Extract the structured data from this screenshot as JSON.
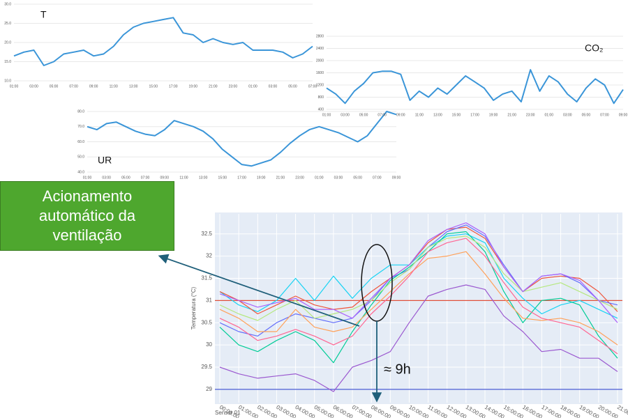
{
  "chart_data": [
    {
      "type": "line",
      "title": "T",
      "categories": [
        "01:00",
        null,
        "03:00",
        null,
        "05:00",
        null,
        "07:00",
        null,
        "09:00",
        null,
        "11:00",
        null,
        "13:00",
        null,
        "15:00",
        null,
        "17:00",
        null,
        "19:00",
        null,
        "21:00",
        null,
        "23:00",
        null,
        "01:00",
        null,
        "03:00",
        null,
        "05:00",
        null,
        "07:00"
      ],
      "series": [
        {
          "color": "#3a95d8",
          "values": [
            16.5,
            17.5,
            18,
            14,
            15,
            17,
            17.5,
            18,
            16.5,
            17,
            19,
            22,
            24,
            25,
            25.5,
            26,
            26.5,
            22.5,
            22,
            20,
            21,
            20,
            19.5,
            20,
            18,
            18,
            18,
            17.5,
            16,
            17,
            19
          ]
        }
      ],
      "ylim": [
        10,
        30
      ],
      "yticks": [
        {
          "value": 10,
          "label": "10.0"
        },
        {
          "value": 15,
          "label": "15.0"
        },
        {
          "value": 20,
          "label": "20.0"
        },
        {
          "value": 25,
          "label": "25.0"
        },
        {
          "value": 30,
          "label": "30.0"
        }
      ],
      "grid": true
    },
    {
      "type": "line",
      "title": "CO₂",
      "categories": [
        "01:00",
        null,
        "03:00",
        null,
        "05:00",
        null,
        "07:00",
        null,
        "09:00",
        null,
        "11:00",
        null,
        "13:00",
        null,
        "15:00",
        null,
        "17:00",
        null,
        "19:00",
        null,
        "21:00",
        null,
        "23:00",
        null,
        "01:00",
        null,
        "03:00",
        null,
        "05:00",
        null,
        "07:00",
        null,
        "09:00"
      ],
      "series": [
        {
          "color": "#3a95d8",
          "values": [
            1100,
            900,
            600,
            1000,
            1250,
            1600,
            1650,
            1650,
            1550,
            700,
            1000,
            800,
            1100,
            900,
            1200,
            1500,
            1300,
            1100,
            700,
            900,
            1000,
            650,
            1700,
            1000,
            1500,
            1300,
            900,
            650,
            1100,
            1400,
            1200,
            600,
            1050
          ]
        }
      ],
      "ylim": [
        400,
        2800
      ],
      "yticks": [
        400,
        800,
        1200,
        1600,
        2000,
        2400,
        2800
      ],
      "grid": true
    },
    {
      "type": "line",
      "title": "UR",
      "categories": [
        "01:00",
        null,
        "03:00",
        null,
        "05:00",
        null,
        "07:00",
        null,
        "09:00",
        null,
        "11:00",
        null,
        "13:00",
        null,
        "15:00",
        null,
        "17:00",
        null,
        "19:00",
        null,
        "21:00",
        null,
        "23:00",
        null,
        "01:00",
        null,
        "03:00",
        null,
        "05:00",
        null,
        "07:00",
        null,
        "09:00"
      ],
      "series": [
        {
          "color": "#3a95d8",
          "values": [
            70,
            68,
            72,
            73,
            70,
            67,
            65,
            64,
            68,
            74,
            72,
            70,
            67,
            62,
            55,
            50,
            45,
            44,
            46,
            48,
            53,
            59,
            64,
            68,
            70,
            68,
            66,
            63,
            60,
            64,
            72,
            80,
            78
          ]
        }
      ],
      "ylim": [
        40,
        80
      ],
      "yticks": [
        {
          "value": 40,
          "label": "40.0"
        },
        {
          "value": 50,
          "label": "50.0"
        },
        {
          "value": 60,
          "label": "60.0"
        },
        {
          "value": 70,
          "label": "70.0"
        },
        {
          "value": 80,
          "label": "80.0"
        }
      ],
      "grid": true
    },
    {
      "type": "line",
      "ylabel": "Temperatura (°C)",
      "footer": "Sensor 01",
      "categories": [
        "00:00:00",
        "01:00:00",
        "02:00:00",
        "03:00:00",
        "04:00:00",
        "05:00:00",
        "06:00:00",
        "07:00:00",
        "08:00:00",
        "09:00:00",
        "10:00:00",
        "11:00:00",
        "12:00:00",
        "13:00:00",
        "14:00:00",
        "15:00:00",
        "16:00:00",
        "17:00:00",
        "18:00:00",
        "19:00:00",
        "20:00:00",
        "21:00:00"
      ],
      "series": [
        {
          "color": "#9b59d0",
          "values": [
            29.5,
            29.35,
            29.25,
            29.3,
            29.35,
            29.2,
            28.95,
            29.5,
            29.65,
            29.85,
            30.5,
            31.1,
            31.25,
            31.35,
            31.25,
            30.65,
            30.3,
            29.85,
            29.9,
            29.7,
            29.7,
            29.4
          ]
        },
        {
          "color": "#19d3f3",
          "values": [
            31.2,
            30.9,
            30.75,
            31.0,
            31.5,
            31.0,
            31.55,
            31.05,
            31.5,
            31.8,
            31.8,
            32.2,
            32.45,
            32.5,
            32.3,
            31.5,
            31.05,
            30.7,
            30.9,
            31.0,
            30.8,
            30.6
          ]
        },
        {
          "color": "#ef553b",
          "values": [
            31.2,
            31.0,
            30.7,
            30.9,
            31.1,
            30.9,
            30.8,
            30.85,
            31.2,
            31.5,
            31.8,
            32.3,
            32.6,
            32.65,
            32.4,
            31.75,
            31.2,
            31.5,
            31.55,
            31.5,
            31.2,
            30.75
          ]
        },
        {
          "color": "#636efa",
          "values": [
            30.5,
            30.3,
            30.2,
            30.5,
            30.7,
            30.6,
            30.5,
            30.6,
            31.0,
            31.5,
            31.7,
            32.2,
            32.55,
            32.7,
            32.45,
            31.8,
            31.2,
            31.55,
            31.6,
            31.4,
            31.0,
            30.9
          ]
        },
        {
          "color": "#00cc96",
          "values": [
            30.4,
            30.0,
            29.85,
            30.1,
            30.3,
            30.1,
            29.6,
            30.3,
            30.9,
            31.45,
            31.75,
            32.1,
            32.5,
            32.55,
            32.1,
            31.2,
            30.5,
            31.0,
            31.05,
            30.9,
            30.2,
            29.7
          ]
        },
        {
          "color": "#ffa15a",
          "values": [
            30.8,
            30.6,
            30.3,
            30.3,
            30.8,
            30.4,
            30.3,
            30.4,
            30.8,
            31.2,
            31.6,
            31.95,
            32.0,
            32.1,
            31.6,
            31.05,
            30.6,
            30.55,
            30.6,
            30.5,
            30.3,
            30.0
          ]
        },
        {
          "color": "#ff6692",
          "values": [
            30.6,
            30.4,
            30.1,
            30.2,
            30.35,
            30.2,
            30.0,
            30.2,
            30.7,
            31.1,
            31.55,
            32.1,
            32.3,
            32.4,
            32.0,
            31.4,
            30.85,
            30.6,
            30.5,
            30.4,
            30.1,
            29.8
          ]
        },
        {
          "color": "#b6e880",
          "values": [
            30.9,
            30.7,
            30.55,
            30.8,
            31.0,
            30.6,
            30.7,
            30.8,
            31.0,
            31.4,
            31.7,
            32.2,
            32.4,
            32.45,
            32.2,
            31.6,
            31.2,
            31.3,
            31.4,
            31.2,
            31.0,
            30.8
          ]
        },
        {
          "color": "#ab63fa",
          "values": [
            31.15,
            31.0,
            30.85,
            30.95,
            31.05,
            30.8,
            30.8,
            30.6,
            31.05,
            31.5,
            31.8,
            32.35,
            32.6,
            32.75,
            32.5,
            31.75,
            31.2,
            31.55,
            31.6,
            31.45,
            31.0,
            30.5
          ]
        }
      ],
      "hlines": [
        {
          "value": 31,
          "color": "#e0503a"
        },
        {
          "value": 29,
          "color": "#4a5bd4"
        }
      ],
      "ylim": [
        28.7,
        32.95
      ],
      "yticks": [
        29,
        29.5,
        30,
        30.5,
        31,
        31.5,
        32,
        32.5
      ],
      "grid": true,
      "background": "#e5ecf6"
    }
  ],
  "annotations": {
    "callout": "Acionamento automático da ventilação",
    "duration": "≈ 9h"
  }
}
